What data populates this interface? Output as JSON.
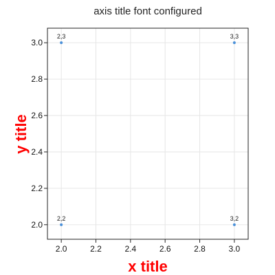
{
  "chart_data": {
    "type": "scatter",
    "title": "axis title font configured",
    "xlabel": "x title",
    "ylabel": "y title",
    "xlim": [
      1.92,
      3.08
    ],
    "ylim": [
      1.92,
      3.08
    ],
    "x_ticks": [
      2.0,
      2.2,
      2.4,
      2.6,
      2.8,
      3.0
    ],
    "y_ticks": [
      2.0,
      2.2,
      2.4,
      2.6,
      2.8,
      3.0
    ],
    "grid": true,
    "series": [
      {
        "color": "#4a90d9",
        "points": [
          {
            "x": 2,
            "y": 3,
            "label": "2,3"
          },
          {
            "x": 3,
            "y": 3,
            "label": "3,3"
          },
          {
            "x": 2,
            "y": 2,
            "label": "2,2"
          },
          {
            "x": 3,
            "y": 2,
            "label": "3,2"
          }
        ]
      }
    ],
    "axis_title_color": "#ff0000"
  }
}
